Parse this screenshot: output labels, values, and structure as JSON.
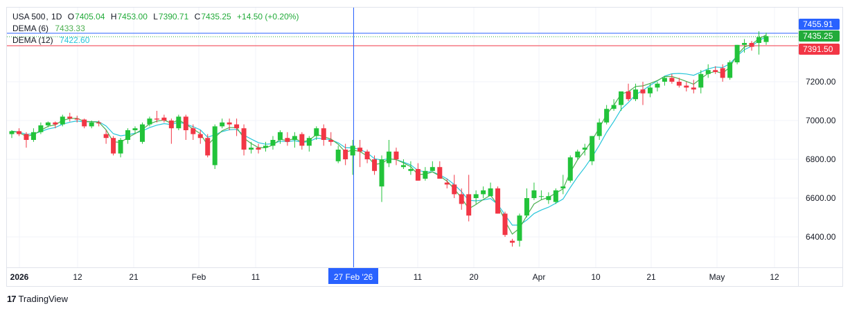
{
  "header": {
    "symbol": "USA 500",
    "interval": "1D",
    "open_label": "O",
    "open": "7405.04",
    "high_label": "H",
    "high": "7453.00",
    "low_label": "L",
    "low": "7390.71",
    "close_label": "C",
    "close": "7435.25",
    "change": "+14.50 (+0.20%)"
  },
  "indicators": [
    {
      "label": "DEMA (6)",
      "value": "7433.33",
      "color": "#4caf50"
    },
    {
      "label": "DEMA (12)",
      "value": "7422.60",
      "color": "#26c6da"
    }
  ],
  "price_badges": [
    {
      "value": "7455.91",
      "color": "#2962ff"
    },
    {
      "value": "7435.25",
      "color": "#22ab3a"
    },
    {
      "value": "7391.50",
      "color": "#f23645"
    }
  ],
  "crosshair_date": "27 Feb '26",
  "logo": {
    "icon": "tradingview-logo-icon",
    "text": "TradingView"
  },
  "colors": {
    "up": "#22c33a",
    "down": "#f23645",
    "dema6": "#4caf50",
    "dema12": "#26c6da",
    "crosshair": "#2962ff",
    "grid": "#f0f3fa"
  },
  "chart_data": {
    "type": "candlestick",
    "y_ticks": [
      6400,
      6600,
      6800,
      7000,
      7200
    ],
    "ylim": [
      6260,
      7570
    ],
    "x_ticks": [
      "2026",
      "12",
      "21",
      "Feb",
      "11",
      "11",
      "20",
      "Apr",
      "10",
      "21",
      "May",
      "12"
    ],
    "grid": true,
    "ohlc": [
      [
        6930,
        6950,
        6910,
        6945
      ],
      [
        6945,
        6960,
        6920,
        6930
      ],
      [
        6930,
        6940,
        6860,
        6900
      ],
      [
        6900,
        6960,
        6890,
        6940
      ],
      [
        6940,
        6990,
        6930,
        6975
      ],
      [
        6975,
        6995,
        6965,
        6990
      ],
      [
        6990,
        6995,
        6960,
        6980
      ],
      [
        6980,
        7030,
        6970,
        7020
      ],
      [
        7020,
        7040,
        6995,
        7010
      ],
      [
        7010,
        7025,
        6990,
        7005
      ],
      [
        7005,
        7010,
        6960,
        6970
      ],
      [
        6970,
        7000,
        6960,
        6990
      ],
      [
        6990,
        7000,
        6970,
        6985
      ],
      [
        6930,
        6950,
        6880,
        6910
      ],
      [
        6910,
        6920,
        6820,
        6830
      ],
      [
        6830,
        6910,
        6810,
        6900
      ],
      [
        6900,
        6960,
        6880,
        6950
      ],
      [
        6950,
        6970,
        6930,
        6960
      ],
      [
        6890,
        6990,
        6880,
        6980
      ],
      [
        6980,
        7020,
        6970,
        7010
      ],
      [
        7010,
        7050,
        6990,
        7005
      ],
      [
        7015,
        7030,
        6990,
        7000
      ],
      [
        7000,
        7010,
        6880,
        6960
      ],
      [
        6960,
        7030,
        6950,
        7020
      ],
      [
        7020,
        7030,
        6900,
        6950
      ],
      [
        6960,
        6980,
        6900,
        6930
      ],
      [
        6930,
        6950,
        6880,
        6910
      ],
      [
        6910,
        6930,
        6810,
        6820
      ],
      [
        6770,
        6980,
        6750,
        6970
      ],
      [
        6970,
        7010,
        6960,
        6990
      ],
      [
        6990,
        7010,
        6950,
        6980
      ],
      [
        6980,
        7010,
        6920,
        6960
      ],
      [
        6960,
        6980,
        6820,
        6850
      ],
      [
        6850,
        6890,
        6830,
        6860
      ],
      [
        6860,
        6880,
        6830,
        6850
      ],
      [
        6860,
        6890,
        6840,
        6870
      ],
      [
        6870,
        6920,
        6850,
        6900
      ],
      [
        6900,
        6950,
        6880,
        6940
      ],
      [
        6910,
        6940,
        6870,
        6890
      ],
      [
        6900,
        6940,
        6860,
        6920
      ],
      [
        6930,
        6940,
        6850,
        6870
      ],
      [
        6870,
        6920,
        6840,
        6910
      ],
      [
        6920,
        6970,
        6900,
        6960
      ],
      [
        6960,
        6980,
        6870,
        6900
      ],
      [
        6900,
        6940,
        6870,
        6890
      ],
      [
        6790,
        6870,
        6780,
        6850
      ],
      [
        6850,
        6880,
        6770,
        6800
      ],
      [
        6820,
        6900,
        6720,
        6870
      ],
      [
        6860,
        6900,
        6760,
        6840
      ],
      [
        6840,
        6850,
        6780,
        6800
      ],
      [
        6800,
        6820,
        6720,
        6740
      ],
      [
        6660,
        6820,
        6580,
        6800
      ],
      [
        6780,
        6900,
        6760,
        6840
      ],
      [
        6840,
        6860,
        6770,
        6800
      ],
      [
        6760,
        6800,
        6750,
        6770
      ],
      [
        6740,
        6790,
        6720,
        6750
      ],
      [
        6750,
        6780,
        6690,
        6690
      ],
      [
        6700,
        6760,
        6690,
        6740
      ],
      [
        6740,
        6790,
        6740,
        6760
      ],
      [
        6760,
        6790,
        6700,
        6700
      ],
      [
        6680,
        6700,
        6650,
        6670
      ],
      [
        6670,
        6720,
        6600,
        6620
      ],
      [
        6620,
        6650,
        6540,
        6570
      ],
      [
        6620,
        6720,
        6480,
        6510
      ],
      [
        6600,
        6640,
        6570,
        6620
      ],
      [
        6620,
        6660,
        6600,
        6640
      ],
      [
        6610,
        6680,
        6620,
        6650
      ],
      [
        6650,
        6660,
        6520,
        6520
      ],
      [
        6520,
        6530,
        6400,
        6410
      ],
      [
        6380,
        6390,
        6350,
        6370
      ],
      [
        6380,
        6520,
        6350,
        6510
      ],
      [
        6510,
        6650,
        6500,
        6600
      ],
      [
        6600,
        6680,
        6590,
        6640
      ],
      [
        6610,
        6640,
        6590,
        6610
      ],
      [
        6590,
        6630,
        6570,
        6610
      ],
      [
        6580,
        6650,
        6570,
        6640
      ],
      [
        6650,
        6720,
        6620,
        6660
      ],
      [
        6690,
        6820,
        6680,
        6810
      ],
      [
        6810,
        6850,
        6800,
        6840
      ],
      [
        6850,
        6880,
        6820,
        6860
      ],
      [
        6790,
        6920,
        6770,
        6920
      ],
      [
        6920,
        7010,
        6900,
        6990
      ],
      [
        6990,
        7080,
        6980,
        7060
      ],
      [
        7060,
        7110,
        7050,
        7080
      ],
      [
        7080,
        7150,
        7050,
        7150
      ],
      [
        7150,
        7190,
        7100,
        7110
      ],
      [
        7110,
        7190,
        7100,
        7160
      ],
      [
        7160,
        7200,
        7080,
        7140
      ],
      [
        7140,
        7190,
        7120,
        7170
      ],
      [
        7170,
        7200,
        7150,
        7190
      ],
      [
        7200,
        7230,
        7180,
        7220
      ],
      [
        7220,
        7240,
        7190,
        7200
      ],
      [
        7200,
        7220,
        7170,
        7180
      ],
      [
        7180,
        7200,
        7150,
        7170
      ],
      [
        7170,
        7210,
        7140,
        7160
      ],
      [
        7170,
        7260,
        7140,
        7240
      ],
      [
        7240,
        7290,
        7220,
        7260
      ],
      [
        7260,
        7280,
        7240,
        7250
      ],
      [
        7270,
        7290,
        7200,
        7220
      ],
      [
        7220,
        7310,
        7210,
        7300
      ],
      [
        7300,
        7390,
        7290,
        7390
      ],
      [
        7390,
        7420,
        7350,
        7400
      ],
      [
        7400,
        7410,
        7360,
        7380
      ],
      [
        7400,
        7460,
        7340,
        7430
      ],
      [
        7405,
        7453,
        7390,
        7435
      ]
    ]
  }
}
